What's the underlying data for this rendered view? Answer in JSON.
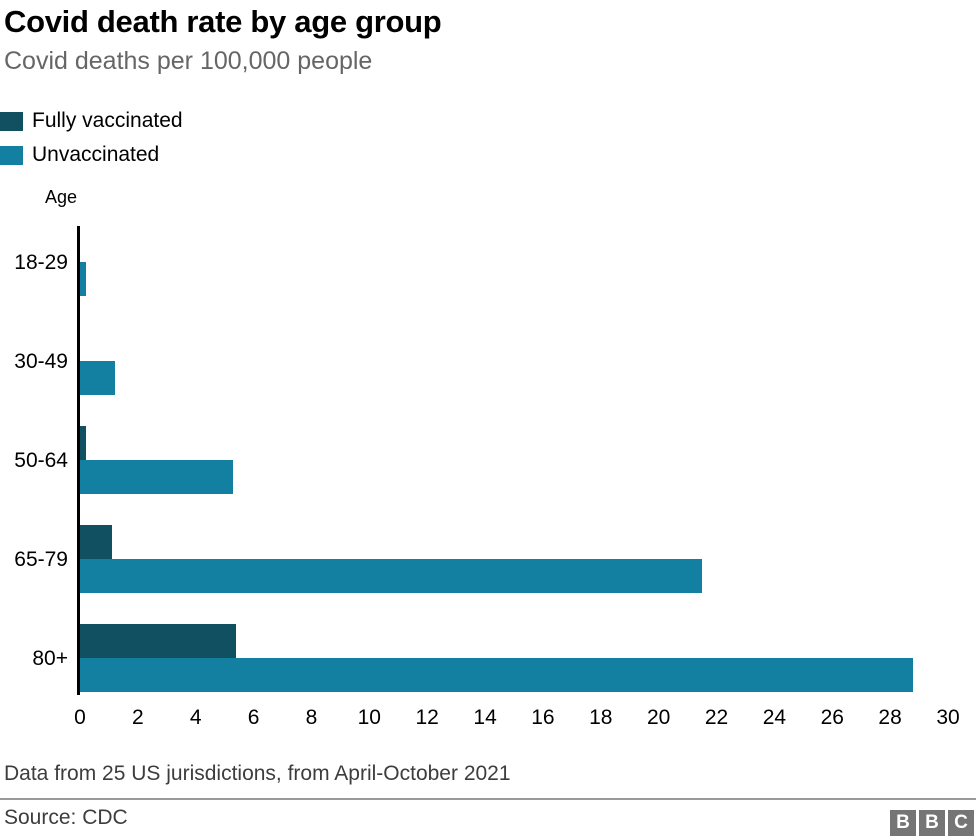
{
  "header": {
    "title": "Covid death rate by age group",
    "subtitle": "Covid deaths per 100,000 people"
  },
  "legend": [
    {
      "label": "Fully vaccinated",
      "color": "#115060"
    },
    {
      "label": "Unvaccinated",
      "color": "#1380a1"
    }
  ],
  "chart_data": {
    "type": "bar",
    "orientation": "horizontal",
    "title": "Covid death rate by age group",
    "subtitle": "Covid deaths per 100,000 people",
    "axis_label": "Age",
    "categories": [
      "18-29",
      "30-49",
      "50-64",
      "65-79",
      "80+"
    ],
    "series": [
      {
        "name": "Fully vaccinated",
        "color": "#115060",
        "values": [
          0,
          0,
          0.2,
          1.1,
          5.4
        ]
      },
      {
        "name": "Unvaccinated",
        "color": "#1380a1",
        "values": [
          0.2,
          1.2,
          5.3,
          21.5,
          28.8
        ]
      }
    ],
    "xlim": [
      0,
      30
    ],
    "xticks": [
      0,
      2,
      4,
      6,
      8,
      10,
      12,
      14,
      16,
      18,
      20,
      22,
      24,
      26,
      28,
      30
    ],
    "grid": "off",
    "legend_position": "top-left"
  },
  "footer": {
    "note": "Data from 25 US jurisdictions, from April-October 2021",
    "source": "Source: CDC",
    "logo_letters": [
      "B",
      "B",
      "C"
    ]
  }
}
